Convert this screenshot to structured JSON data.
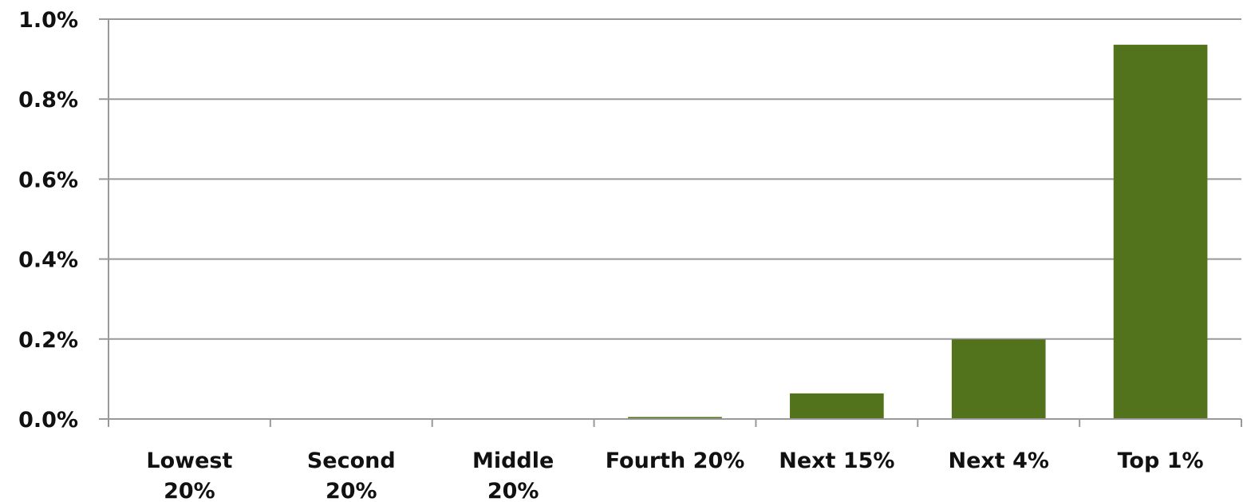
{
  "chart_data": {
    "type": "bar",
    "title": "",
    "xlabel": "",
    "ylabel": "",
    "categories": [
      [
        "Lowest",
        "20%"
      ],
      [
        "Second",
        "20%"
      ],
      [
        "Middle",
        "20%"
      ],
      [
        "Fourth 20%"
      ],
      [
        "Next 15%"
      ],
      [
        "Next 4%"
      ],
      [
        "Top 1%"
      ]
    ],
    "values": [
      0.0,
      0.0,
      0.0,
      0.005,
      0.064,
      0.199,
      0.936
    ],
    "ylim": [
      0,
      1.0
    ],
    "yticks": [
      0.0,
      0.2,
      0.4,
      0.6,
      0.8,
      1.0
    ],
    "ytick_labels": [
      "0.0%",
      "0.2%",
      "0.4%",
      "0.6%",
      "0.8%",
      "1.0%"
    ],
    "grid": true,
    "legend": "none",
    "bar_color": "#52721b",
    "grid_color": "#999999"
  }
}
